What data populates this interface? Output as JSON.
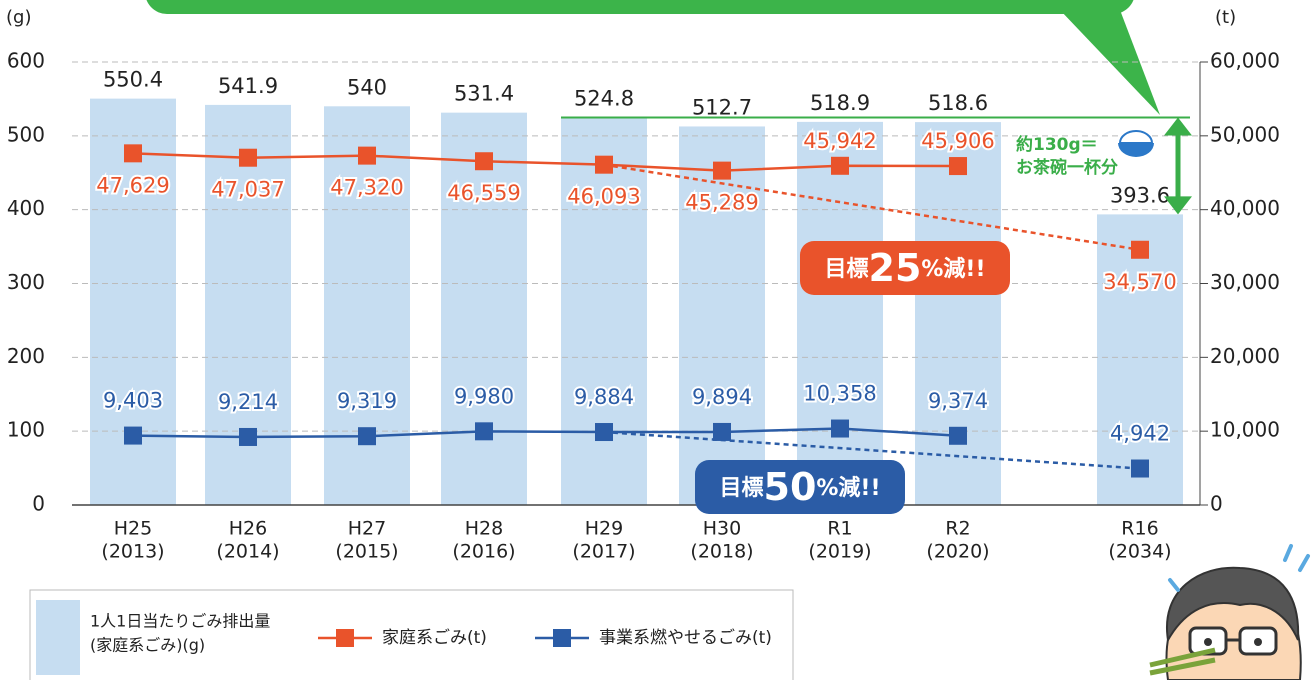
{
  "chart_data": {
    "type": "combo",
    "y_unit": "(g)",
    "y2_unit": "(t)",
    "categories": [
      "H25",
      "H26",
      "H27",
      "H28",
      "H29",
      "H30",
      "R1",
      "R2",
      "R16"
    ],
    "category_years": [
      "(2013)",
      "(2014)",
      "(2015)",
      "(2016)",
      "(2017)",
      "(2018)",
      "(2019)",
      "(2020)",
      "(2034)"
    ],
    "ylim": [
      0,
      600
    ],
    "yticks": [
      0,
      100,
      200,
      300,
      400,
      500,
      600
    ],
    "y2lim": [
      0,
      60000
    ],
    "y2ticks": [
      0,
      {
        "value": 10000,
        "label": "10,000"
      },
      {
        "value": 20000,
        "label": "20,000"
      },
      {
        "value": 30000,
        "label": "30,000"
      },
      {
        "value": 40000,
        "label": "40,000"
      },
      {
        "value": 50000,
        "label": "50,000"
      },
      {
        "value": 60000,
        "label": "60,000"
      }
    ],
    "grid": true,
    "bars": {
      "name_lines": [
        "1人1日当たりごみ排出量",
        "(家庭系ごみ)(g)"
      ],
      "color": "#c6ddf1",
      "values": [
        550.4,
        541.9,
        540,
        531.4,
        524.8,
        512.7,
        518.9,
        518.6,
        393.6
      ]
    },
    "series": [
      {
        "name": "家庭系ごみ(t)",
        "color": "#e9532b",
        "axis": "y2",
        "projection_from": 4,
        "values": [
          47629,
          47037,
          47320,
          46559,
          46093,
          45289,
          45942,
          45906,
          34570
        ],
        "value_labels": [
          "47,629",
          "47,037",
          "47,320",
          "46,559",
          "46,093",
          "45,289",
          "45,942",
          "45,906",
          "34,570"
        ]
      },
      {
        "name": "事業系燃やせるごみ(t)",
        "color": "#2b5ca6",
        "axis": "y2",
        "projection_from": 4,
        "values": [
          9403,
          9214,
          9319,
          9980,
          9884,
          9894,
          10358,
          9374,
          4942
        ],
        "value_labels": [
          "9,403",
          "9,214",
          "9,319",
          "9,980",
          "9,884",
          "9,894",
          "10,358",
          "9,374",
          "4,942"
        ]
      }
    ],
    "annotations": {
      "targets": [
        {
          "before": "目標",
          "number": "25",
          "after": "%減!!",
          "color": "#e9532b"
        },
        {
          "before": "目標",
          "number": "50",
          "after": "%減!!",
          "color": "#2b5ca6"
        }
      ],
      "difference": {
        "line1": "約130g＝",
        "line2": "お茶碗一杯分",
        "color": "#3aae49"
      }
    }
  }
}
